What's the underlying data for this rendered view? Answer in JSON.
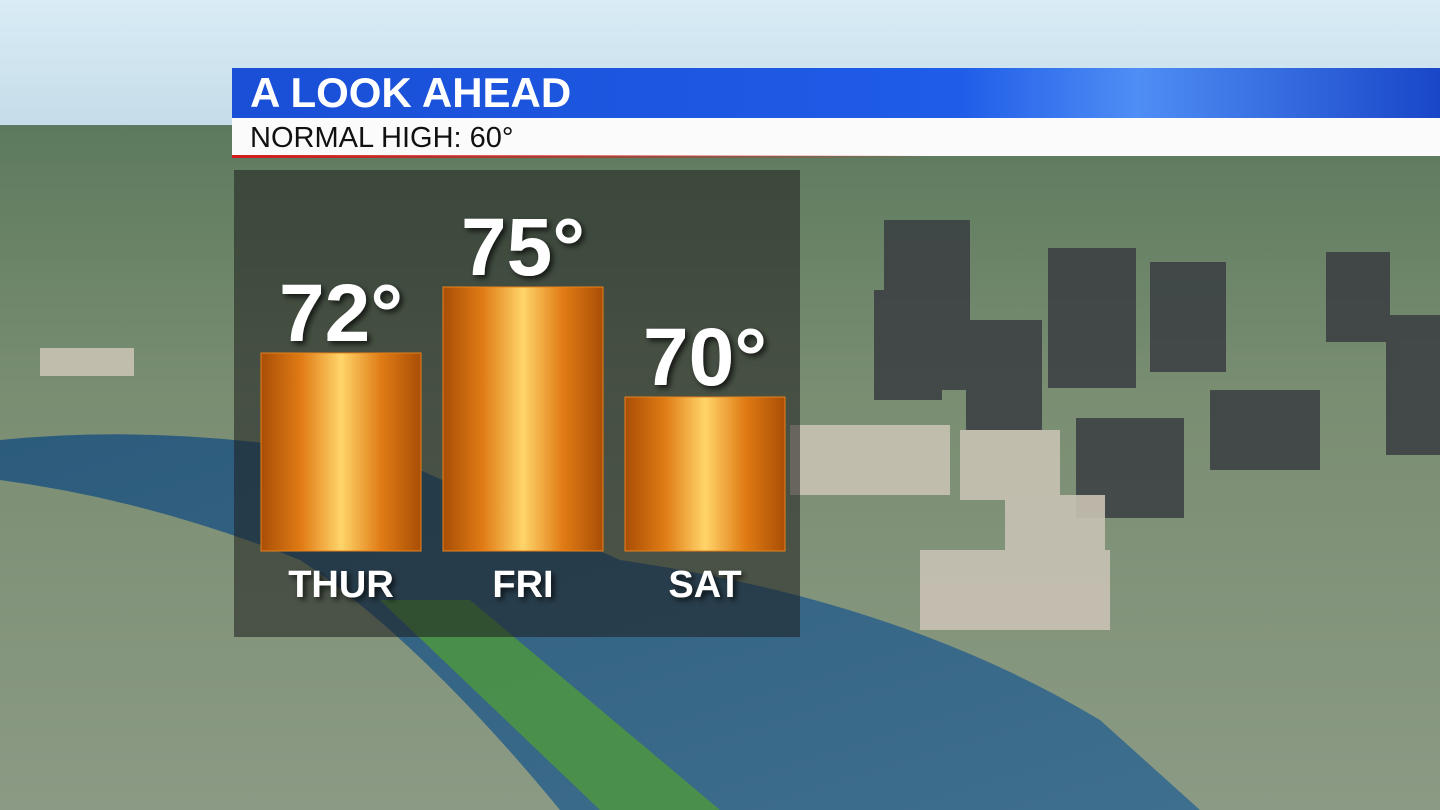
{
  "chart_data": {
    "type": "bar",
    "title": "A LOOK AHEAD",
    "subtitle": "NORMAL HIGH: 60°",
    "categories": [
      "THUR",
      "FRI",
      "SAT"
    ],
    "values": [
      72,
      75,
      70
    ],
    "value_labels": [
      "72°",
      "75°",
      "70°"
    ],
    "color": "#e8821a",
    "ylim": [
      63,
      77
    ]
  }
}
